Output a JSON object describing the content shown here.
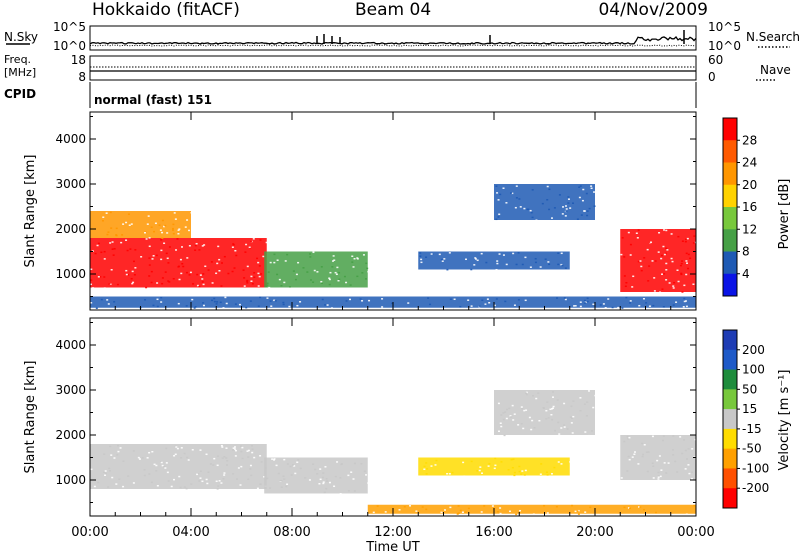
{
  "header": {
    "site": "Hokkaido (fitACF)",
    "beam": "Beam 04",
    "date": "04/Nov/2009"
  },
  "noise_panel": {
    "left_label": "N.Sky",
    "right_label": "N.Search",
    "left_ticks": [
      "10^5",
      "10^0"
    ],
    "right_ticks": [
      "10^5",
      "10^0"
    ]
  },
  "freq_panel": {
    "left_label_1": "Freq.",
    "left_label_2": "[MHz]",
    "right_label": "Nave",
    "left_ticks": [
      "18",
      "8"
    ],
    "right_ticks": [
      "60",
      "0"
    ]
  },
  "cpid_panel": {
    "label": "CPID",
    "text": "normal (fast) 151"
  },
  "axes": {
    "ylabel": "Slant Range [km]",
    "yticks": [
      "1000",
      "2000",
      "3000",
      "4000"
    ],
    "xticks": [
      "00:00",
      "04:00",
      "08:00",
      "12:00",
      "16:00",
      "20:00",
      "00:00"
    ],
    "xlabel": "Time UT"
  },
  "power_colorbar": {
    "label": "Power [dB]",
    "ticks": [
      "28",
      "24",
      "20",
      "16",
      "12",
      "8",
      "4"
    ],
    "colors": [
      "#ff0000",
      "#ff5a00",
      "#ff9600",
      "#ffd200",
      "#78c83c",
      "#46a046",
      "#1e5ab4",
      "#0a14e6"
    ]
  },
  "velocity_colorbar": {
    "label": "Velocity [m s⁻¹]",
    "ticks": [
      "200",
      "100",
      "50",
      "15",
      "-15",
      "-50",
      "-100",
      "-200"
    ],
    "colors": [
      "#1e3cb4",
      "#1e5ac8",
      "#1e8c3c",
      "#78c83c",
      "#c8c8c8",
      "#ffdc00",
      "#ffa000",
      "#ff5000",
      "#ff0000"
    ]
  },
  "chart_data": [
    {
      "type": "heatmap",
      "name_on_chart": "Power [dB]",
      "x_unit": "hours UT",
      "xlim": [
        0,
        24
      ],
      "ylim": [
        200,
        4600
      ],
      "regions": [
        {
          "t0": 0.0,
          "t1": 7.0,
          "r0": 700,
          "r1": 1800,
          "color": "#ff0000"
        },
        {
          "t0": 0.0,
          "t1": 4.0,
          "r0": 1800,
          "r1": 2400,
          "color": "#ff9600"
        },
        {
          "t0": 6.9,
          "t1": 11.0,
          "r0": 700,
          "r1": 1500,
          "color": "#46a046"
        },
        {
          "t0": 13.0,
          "t1": 19.0,
          "r0": 1100,
          "r1": 1500,
          "color": "#1e5ab4"
        },
        {
          "t0": 16.0,
          "t1": 20.0,
          "r0": 2200,
          "r1": 3000,
          "color": "#1e5ab4"
        },
        {
          "t0": 21.0,
          "t1": 24.0,
          "r0": 600,
          "r1": 2000,
          "color": "#ff0000"
        },
        {
          "t0": 0.0,
          "t1": 24.0,
          "r0": 250,
          "r1": 500,
          "color": "#1e5ab4"
        }
      ]
    },
    {
      "type": "heatmap",
      "name_on_chart": "Velocity [m s⁻¹]",
      "x_unit": "hours UT",
      "xlim": [
        0,
        24
      ],
      "ylim": [
        200,
        4600
      ],
      "regions": [
        {
          "t0": 0.0,
          "t1": 7.0,
          "r0": 800,
          "r1": 1800,
          "color": "#c8c8c8"
        },
        {
          "t0": 6.9,
          "t1": 11.0,
          "r0": 700,
          "r1": 1500,
          "color": "#c8c8c8"
        },
        {
          "t0": 13.0,
          "t1": 19.0,
          "r0": 1100,
          "r1": 1500,
          "color": "#ffdc00"
        },
        {
          "t0": 16.0,
          "t1": 20.0,
          "r0": 2000,
          "r1": 3000,
          "color": "#c8c8c8"
        },
        {
          "t0": 21.0,
          "t1": 24.0,
          "r0": 1000,
          "r1": 2000,
          "color": "#c8c8c8"
        },
        {
          "t0": 11.0,
          "t1": 24.0,
          "r0": 250,
          "r1": 450,
          "color": "#ffa000"
        }
      ]
    }
  ]
}
